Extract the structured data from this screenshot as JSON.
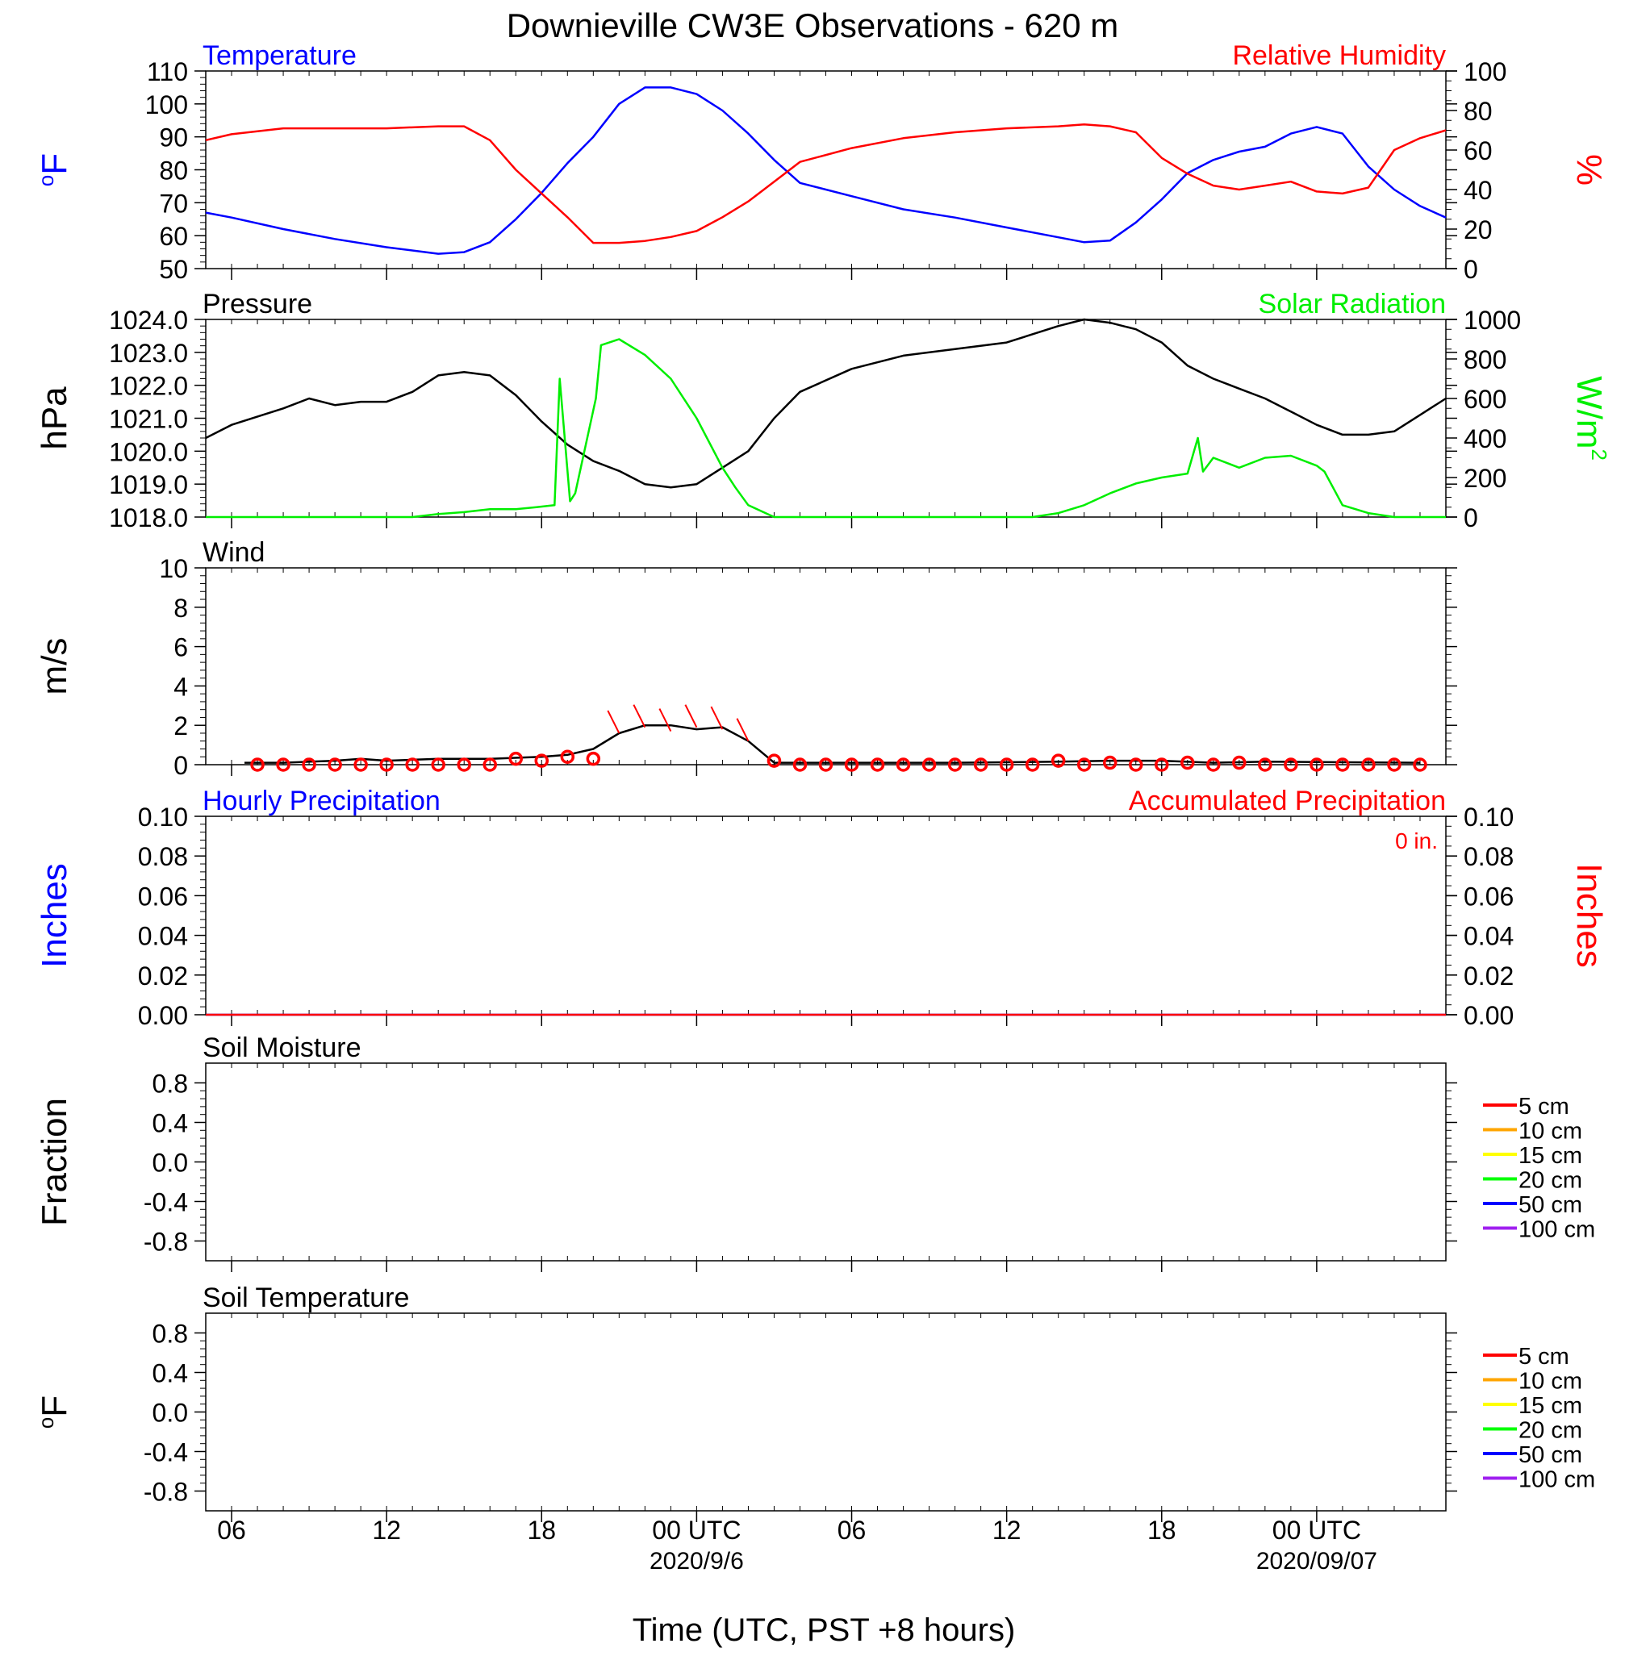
{
  "title": "Downieville CW3E Observations - 620 m",
  "xlabel": "Time (UTC, PST +8 hours)",
  "time_axis": {
    "start_hour": 5,
    "end_hour": 53,
    "ticks": [
      {
        "hour": 6,
        "label": "06",
        "date": ""
      },
      {
        "hour": 12,
        "label": "12",
        "date": ""
      },
      {
        "hour": 18,
        "label": "18",
        "date": ""
      },
      {
        "hour": 24,
        "label": "00 UTC",
        "date": "2020/9/6"
      },
      {
        "hour": 30,
        "label": "06",
        "date": ""
      },
      {
        "hour": 36,
        "label": "12",
        "date": ""
      },
      {
        "hour": 42,
        "label": "18",
        "date": ""
      },
      {
        "hour": 48,
        "label": "00 UTC",
        "date": "2020/09/07"
      }
    ]
  },
  "colors": {
    "temperature": "#0000ff",
    "humidity": "#ff0000",
    "pressure": "#000000",
    "solar": "#00ee00",
    "wind": "#000000",
    "wind_marker": "#ff0000"
  },
  "chart_data": [
    {
      "type": "line",
      "panel": "temperature-humidity",
      "title_left": "Temperature",
      "title_right": "Relative Humidity",
      "ylabel_left": "oF",
      "ylabel_right": "%",
      "ylim_left": [
        50,
        110
      ],
      "yticks_left": [
        50,
        60,
        70,
        80,
        90,
        100,
        110
      ],
      "ylim_right": [
        0,
        100
      ],
      "yticks_right": [
        0,
        20,
        40,
        60,
        80,
        100
      ],
      "series": [
        {
          "name": "Temperature",
          "axis": "left",
          "color": "#0000ff",
          "x": [
            5,
            6,
            8,
            10,
            12,
            14,
            15,
            16,
            17,
            18,
            19,
            20,
            21,
            22,
            23,
            24,
            25,
            26,
            27,
            28,
            30,
            32,
            34,
            36,
            38,
            39,
            40,
            41,
            42,
            43,
            44,
            45,
            46,
            47,
            48,
            49,
            50,
            51,
            52,
            53
          ],
          "y": [
            67,
            65.5,
            62,
            59,
            56.5,
            54.5,
            55,
            58,
            65,
            73,
            82,
            90,
            100,
            105,
            105,
            103,
            98,
            91,
            83,
            76,
            72,
            68,
            65.5,
            62.5,
            59.5,
            58,
            58.5,
            64,
            71,
            79,
            83,
            85.5,
            87,
            91,
            93,
            91,
            81,
            74,
            69,
            65.5
          ]
        },
        {
          "name": "Relative Humidity",
          "axis": "right",
          "color": "#ff0000",
          "x": [
            5,
            6,
            8,
            10,
            12,
            14,
            15,
            16,
            17,
            18,
            19,
            20,
            21,
            22,
            23,
            24,
            25,
            26,
            27,
            28,
            30,
            32,
            34,
            36,
            38,
            39,
            40,
            41,
            42,
            43,
            44,
            45,
            46,
            47,
            48,
            49,
            50,
            51,
            52,
            53
          ],
          "y": [
            65,
            68,
            71,
            71,
            71,
            72,
            72,
            65,
            50,
            38,
            26,
            13,
            13,
            14,
            16,
            19,
            26,
            34,
            44,
            54,
            61,
            66,
            69,
            71,
            72,
            73,
            72,
            69,
            56,
            48,
            42,
            40,
            42,
            44,
            39,
            38,
            41,
            60,
            66,
            70
          ]
        }
      ]
    },
    {
      "type": "line",
      "panel": "pressure-solar",
      "title_left": "Pressure",
      "title_right": "Solar Radiation",
      "ylabel_left": "hPa",
      "ylabel_right": "W/m2",
      "ylim_left": [
        1018,
        1024
      ],
      "yticks_left": [
        1018.0,
        1019.0,
        1020.0,
        1021.0,
        1022.0,
        1023.0,
        1024.0
      ],
      "ylim_right": [
        0,
        1000
      ],
      "yticks_right": [
        0,
        200,
        400,
        600,
        800,
        1000
      ],
      "series": [
        {
          "name": "Pressure",
          "axis": "left",
          "color": "#000000",
          "x": [
            5,
            6,
            8,
            9,
            10,
            11,
            12,
            13,
            14,
            15,
            16,
            17,
            18,
            19,
            20,
            21,
            22,
            23,
            24,
            25,
            26,
            27,
            28,
            30,
            32,
            34,
            36,
            38,
            39,
            40,
            41,
            42,
            43,
            44,
            45,
            46,
            47,
            48,
            49,
            50,
            51,
            52,
            53
          ],
          "y": [
            1020.4,
            1020.8,
            1021.3,
            1021.6,
            1021.4,
            1021.5,
            1021.5,
            1021.8,
            1022.3,
            1022.4,
            1022.3,
            1021.7,
            1020.9,
            1020.2,
            1019.7,
            1019.4,
            1019.0,
            1018.9,
            1019.0,
            1019.5,
            1020.0,
            1021.0,
            1021.8,
            1022.5,
            1022.9,
            1023.1,
            1023.3,
            1023.8,
            1024.0,
            1023.9,
            1023.7,
            1023.3,
            1022.6,
            1022.2,
            1021.9,
            1021.6,
            1021.2,
            1020.8,
            1020.5,
            1020.5,
            1020.6,
            1021.1,
            1021.6
          ]
        },
        {
          "name": "Solar Radiation",
          "axis": "right",
          "color": "#00ee00",
          "x": [
            5,
            13,
            14,
            15,
            16,
            17,
            17.8,
            18.5,
            18.7,
            19.1,
            19.3,
            20.1,
            20.3,
            21,
            22,
            23,
            24,
            25,
            25.5,
            26,
            27,
            36,
            37,
            38,
            39,
            40,
            41,
            42,
            43,
            43.4,
            43.6,
            44,
            45,
            46,
            47,
            48,
            48.3,
            49,
            50,
            51,
            53
          ],
          "y": [
            0,
            0,
            15,
            25,
            40,
            40,
            50,
            60,
            700,
            80,
            120,
            600,
            870,
            900,
            820,
            700,
            500,
            250,
            150,
            60,
            0,
            0,
            0,
            20,
            60,
            120,
            170,
            200,
            220,
            400,
            230,
            300,
            250,
            300,
            310,
            260,
            230,
            60,
            20,
            0,
            0
          ]
        }
      ]
    },
    {
      "type": "line",
      "panel": "wind",
      "title_left": "Wind",
      "ylabel_left": "m/s",
      "ylim_left": [
        0,
        10
      ],
      "yticks_left": [
        0,
        2,
        4,
        6,
        8,
        10
      ],
      "series": [
        {
          "name": "Wind",
          "axis": "left",
          "color": "#000000",
          "x": [
            6.5,
            8,
            10,
            11,
            12,
            14,
            16,
            18,
            19,
            20,
            21,
            22,
            23,
            24,
            25,
            26,
            27,
            30,
            34,
            38,
            40,
            42,
            44,
            46,
            52
          ],
          "y": [
            0.1,
            0.1,
            0.2,
            0.3,
            0.2,
            0.3,
            0.3,
            0.4,
            0.5,
            0.8,
            1.6,
            2.0,
            2.0,
            1.8,
            1.9,
            1.2,
            0.1,
            0.1,
            0.1,
            0.15,
            0.2,
            0.2,
            0.1,
            0.15,
            0.1
          ]
        }
      ],
      "hourly_markers": {
        "name": "Hourly wind",
        "color": "#ff0000",
        "x": [
          7,
          8,
          9,
          10,
          11,
          12,
          13,
          14,
          15,
          16,
          17,
          18,
          19,
          20,
          21,
          22,
          23,
          24,
          25,
          26,
          27,
          28,
          29,
          30,
          31,
          32,
          33,
          34,
          35,
          36,
          37,
          38,
          39,
          40,
          41,
          42,
          43,
          44,
          45,
          46,
          47,
          48,
          49,
          50,
          51,
          52
        ],
        "y": [
          0,
          0,
          0,
          0,
          0,
          0,
          0,
          0,
          0,
          0,
          0.3,
          0.2,
          0.4,
          0.3,
          1.6,
          1.9,
          1.7,
          1.9,
          1.8,
          1.2,
          0.2,
          0,
          0,
          0,
          0,
          0,
          0,
          0,
          0,
          0,
          0,
          0.2,
          0,
          0.1,
          0,
          0,
          0.1,
          0,
          0.1,
          0,
          0,
          0,
          0,
          0,
          0,
          0
        ],
        "shown_circle_x": [
          7,
          8,
          9,
          10,
          11,
          12,
          13,
          14,
          15,
          16,
          17,
          18,
          19,
          20,
          27,
          28,
          29,
          30,
          31,
          32,
          33,
          34,
          35,
          36,
          37,
          38,
          39,
          40,
          41,
          42,
          43,
          44,
          45,
          46,
          47,
          48,
          49,
          50,
          51,
          52
        ]
      }
    },
    {
      "type": "line",
      "panel": "precipitation",
      "title_left": "Hourly Precipitation",
      "title_right": "Accumulated Precipitation",
      "annotation": "0 in.",
      "ylabel_left": "Inches",
      "ylabel_right": "Inches",
      "ylim_left": [
        0,
        0.1
      ],
      "yticks_left": [
        "0.00",
        "0.02",
        "0.04",
        "0.06",
        "0.08",
        "0.10"
      ],
      "ylim_right": [
        0,
        0.1
      ],
      "yticks_right": [
        "0.00",
        "0.02",
        "0.04",
        "0.06",
        "0.08",
        "0.10"
      ],
      "series": [
        {
          "name": "Hourly Precipitation",
          "axis": "left",
          "color": "#0000ff",
          "x": [
            5,
            53
          ],
          "y": [
            0,
            0
          ]
        },
        {
          "name": "Accumulated Precipitation",
          "axis": "right",
          "color": "#ff0000",
          "x": [
            5,
            53
          ],
          "y": [
            0,
            0
          ]
        }
      ]
    },
    {
      "type": "line",
      "panel": "soil-moisture",
      "title_left": "Soil Moisture",
      "ylabel_left": "Fraction",
      "ylim_left": [
        -1,
        1
      ],
      "yticks_left": [
        "-0.8",
        "-0.4",
        "0.0",
        "0.4",
        "0.8"
      ],
      "legend": [
        {
          "label": "5 cm",
          "color": "#ff0000"
        },
        {
          "label": "10 cm",
          "color": "#ffa500"
        },
        {
          "label": "15 cm",
          "color": "#ffff00"
        },
        {
          "label": "20 cm",
          "color": "#00ff00"
        },
        {
          "label": "50 cm",
          "color": "#0000ff"
        },
        {
          "label": "100 cm",
          "color": "#a020f0"
        }
      ],
      "series": []
    },
    {
      "type": "line",
      "panel": "soil-temperature",
      "title_left": "Soil Temperature",
      "ylabel_left": "oF",
      "ylim_left": [
        -1,
        1
      ],
      "yticks_left": [
        "-0.8",
        "-0.4",
        "0.0",
        "0.4",
        "0.8"
      ],
      "legend": [
        {
          "label": "5 cm",
          "color": "#ff0000"
        },
        {
          "label": "10 cm",
          "color": "#ffa500"
        },
        {
          "label": "15 cm",
          "color": "#ffff00"
        },
        {
          "label": "20 cm",
          "color": "#00ff00"
        },
        {
          "label": "50 cm",
          "color": "#0000ff"
        },
        {
          "label": "100 cm",
          "color": "#a020f0"
        }
      ],
      "series": []
    }
  ]
}
